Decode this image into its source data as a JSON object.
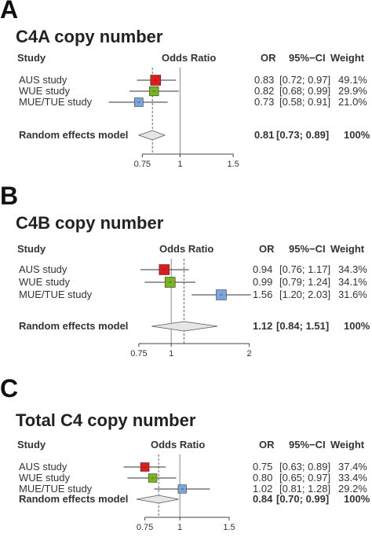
{
  "chart_data": [
    {
      "type": "forest",
      "panel_letter": "A",
      "title": "C4A copy number",
      "headers": {
        "study": "Study",
        "plot": "Odds Ratio",
        "or": "OR",
        "ci": "95%−CI",
        "weight": "Weight"
      },
      "xlim": [
        0.66,
        1.62
      ],
      "ticks": [
        0.75,
        1,
        1.5
      ],
      "tick_labels": [
        "0.75",
        "1",
        "1.5"
      ],
      "log_scale": true,
      "reference_line": 1,
      "studies": [
        {
          "name": "AUS study",
          "or": 0.83,
          "ci_low": 0.72,
          "ci_high": 0.97,
          "or_text": "0.83",
          "ci_text": "[0.72; 0.97]",
          "weight_text": "49.1%",
          "weight": 49.1,
          "color": "#dd1c1c"
        },
        {
          "name": "WUE study",
          "or": 0.82,
          "ci_low": 0.68,
          "ci_high": 0.99,
          "or_text": "0.82",
          "ci_text": "[0.68; 0.99]",
          "weight_text": "29.9%",
          "weight": 29.9,
          "color": "#7ab51d"
        },
        {
          "name": "MUE/TUE study",
          "or": 0.73,
          "ci_low": 0.58,
          "ci_high": 0.91,
          "or_text": "0.73",
          "ci_text": "[0.58; 0.91]",
          "weight_text": "21.0%",
          "weight": 21.0,
          "color": "#7aa6e0"
        }
      ],
      "pooled": {
        "name": "Random effects model",
        "or": 0.81,
        "ci_low": 0.73,
        "ci_high": 0.89,
        "or_text": "0.81",
        "ci_text": "[0.73; 0.89]",
        "weight_text": "100%"
      }
    },
    {
      "type": "forest",
      "panel_letter": "B",
      "title": "C4B copy number",
      "headers": {
        "study": "Study",
        "plot": "Odds Ratio",
        "or": "OR",
        "ci": "95%−CI",
        "weight": "Weight"
      },
      "xlim": [
        0.7,
        2.15
      ],
      "ticks": [
        0.75,
        1,
        2
      ],
      "tick_labels": [
        "0.75",
        "1",
        "2"
      ],
      "log_scale": true,
      "reference_line": 1,
      "studies": [
        {
          "name": "AUS study",
          "or": 0.94,
          "ci_low": 0.76,
          "ci_high": 1.17,
          "or_text": "0.94",
          "ci_text": "[0.76; 1.17]",
          "weight_text": "34.3%",
          "weight": 34.3,
          "color": "#dd1c1c"
        },
        {
          "name": "WUE study",
          "or": 0.99,
          "ci_low": 0.79,
          "ci_high": 1.24,
          "or_text": "0.99",
          "ci_text": "[0.79; 1.24]",
          "weight_text": "34.1%",
          "weight": 34.1,
          "color": "#7ab51d"
        },
        {
          "name": "MUE/TUE study",
          "or": 1.56,
          "ci_low": 1.2,
          "ci_high": 2.03,
          "or_text": "1.56",
          "ci_text": "[1.20; 2.03]",
          "weight_text": "31.6%",
          "weight": 31.6,
          "color": "#7aa6e0"
        }
      ],
      "pooled": {
        "name": "Random effects model",
        "or": 1.12,
        "ci_low": 0.84,
        "ci_high": 1.51,
        "or_text": "1.12",
        "ci_text": "[0.84; 1.51]",
        "weight_text": "100%"
      }
    },
    {
      "type": "forest",
      "panel_letter": "C",
      "title": "Total C4 copy number",
      "headers": {
        "study": "Study",
        "plot": "Odds Ratio",
        "or": "OR",
        "ci": "95%−CI",
        "weight": "Weight"
      },
      "xlim": [
        0.6,
        1.6
      ],
      "ticks": [
        0.75,
        1,
        1.5
      ],
      "tick_labels": [
        "0.75",
        "1",
        "1.5"
      ],
      "log_scale": true,
      "reference_line": 1,
      "studies": [
        {
          "name": "AUS study",
          "or": 0.75,
          "ci_low": 0.63,
          "ci_high": 0.89,
          "or_text": "0.75",
          "ci_text": "[0.63; 0.89]",
          "weight_text": "37.4%",
          "weight": 37.4,
          "color": "#dd1c1c"
        },
        {
          "name": "WUE study",
          "or": 0.8,
          "ci_low": 0.65,
          "ci_high": 0.97,
          "or_text": "0.80",
          "ci_text": "[0.65; 0.97]",
          "weight_text": "33.4%",
          "weight": 33.4,
          "color": "#7ab51d"
        },
        {
          "name": "MUE/TUE study",
          "or": 1.02,
          "ci_low": 0.81,
          "ci_high": 1.28,
          "or_text": "1.02",
          "ci_text": "[0.81; 1.28]",
          "weight_text": "29.2%",
          "weight": 29.2,
          "color": "#7aa6e0"
        }
      ],
      "pooled": {
        "name": "Random effects model",
        "or": 0.84,
        "ci_low": 0.7,
        "ci_high": 0.99,
        "or_text": "0.84",
        "ci_text": "[0.70; 0.99]",
        "weight_text": "100%"
      }
    }
  ]
}
